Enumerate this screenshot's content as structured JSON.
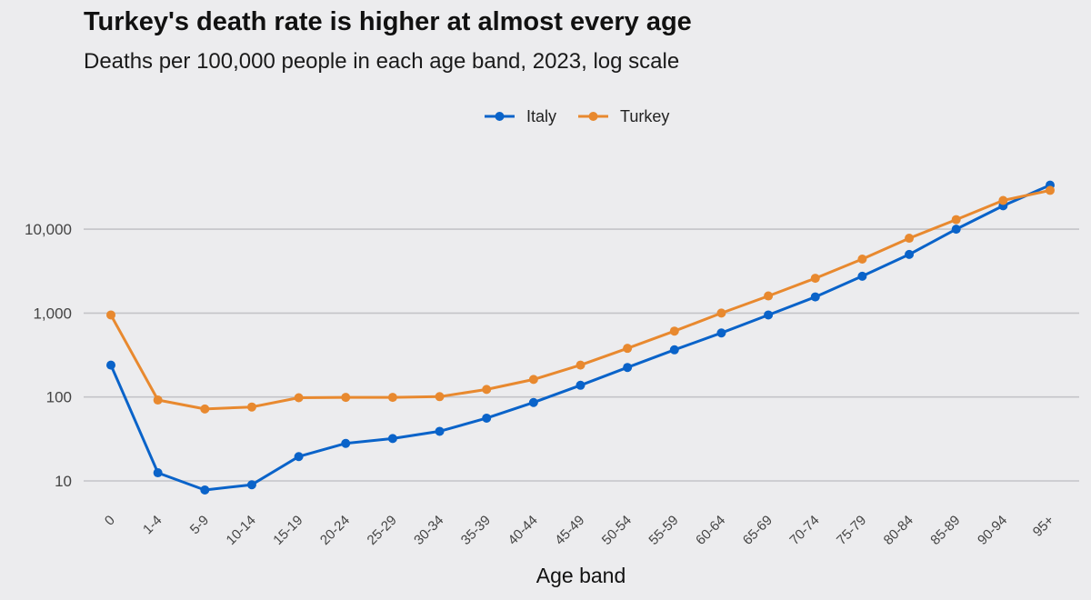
{
  "title": "Turkey's death rate is higher at almost every age",
  "subtitle": "Deaths per 100,000 people in each age band, 2023, log scale",
  "chart_data": {
    "type": "line",
    "title": "Turkey's death rate is higher at almost every age",
    "subtitle": "Deaths per 100,000 people in each age band, 2023, log scale",
    "xlabel": "Age band",
    "ylabel": "",
    "yscale": "log",
    "ylim": [
      6,
      40000
    ],
    "yticks": [
      10,
      100,
      1000,
      10000
    ],
    "ytick_labels": [
      "10",
      "100",
      "1,000",
      "10,000"
    ],
    "grid": "horizontal",
    "legend_position": "top-center",
    "categories": [
      "0",
      "1-4",
      "5-9",
      "10-14",
      "15-19",
      "20-24",
      "25-29",
      "30-34",
      "35-39",
      "40-44",
      "45-49",
      "50-54",
      "55-59",
      "60-64",
      "65-69",
      "70-74",
      "75-79",
      "80-84",
      "85-89",
      "90-94",
      "95+"
    ],
    "series": [
      {
        "name": "Italy",
        "color": "#0a63c9",
        "values": [
          240,
          12.5,
          7.8,
          9,
          19.5,
          28,
          32,
          39,
          56,
          86,
          138,
          225,
          365,
          580,
          950,
          1560,
          2750,
          5000,
          10000,
          19000,
          33500
        ]
      },
      {
        "name": "Turkey",
        "color": "#e8892f",
        "values": [
          950,
          92,
          72,
          76,
          98,
          99,
          99,
          101,
          123,
          162,
          240,
          380,
          610,
          1000,
          1600,
          2600,
          4400,
          7800,
          13000,
          22000,
          29000
        ]
      }
    ]
  }
}
